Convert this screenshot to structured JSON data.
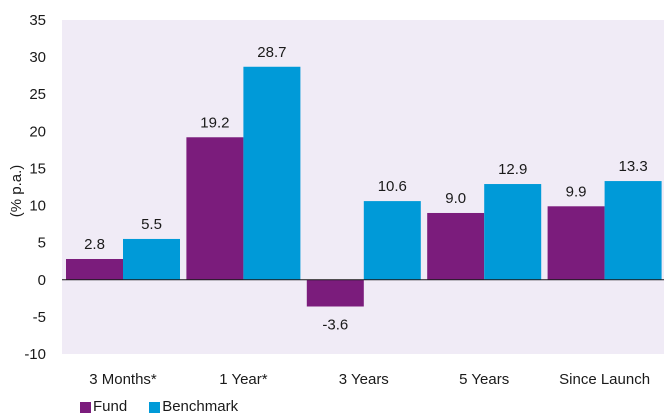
{
  "chart_data": {
    "type": "bar",
    "categories": [
      "3 Months*",
      "1 Year*",
      "3 Years",
      "5 Years",
      "Since Launch"
    ],
    "series": [
      {
        "name": "Fund",
        "color": "#7b1c7c",
        "values": [
          2.8,
          19.2,
          -3.6,
          9.0,
          9.9
        ],
        "labels": [
          "2.8",
          "19.2",
          "-3.6",
          "9.0",
          "9.9"
        ]
      },
      {
        "name": "Benchmark",
        "color": "#009ad8",
        "values": [
          5.5,
          28.7,
          10.6,
          12.9,
          13.3
        ],
        "labels": [
          "5.5",
          "28.7",
          "10.6",
          "12.9",
          "13.3"
        ]
      }
    ],
    "ylabel": "(% p.a.)",
    "ylim": [
      -10,
      35
    ],
    "yticks": [
      35,
      30,
      25,
      20,
      15,
      10,
      5,
      0,
      -5,
      -10
    ],
    "plot_background": "#f0ebf6",
    "grid": false,
    "legend_position": "bottom-left"
  }
}
